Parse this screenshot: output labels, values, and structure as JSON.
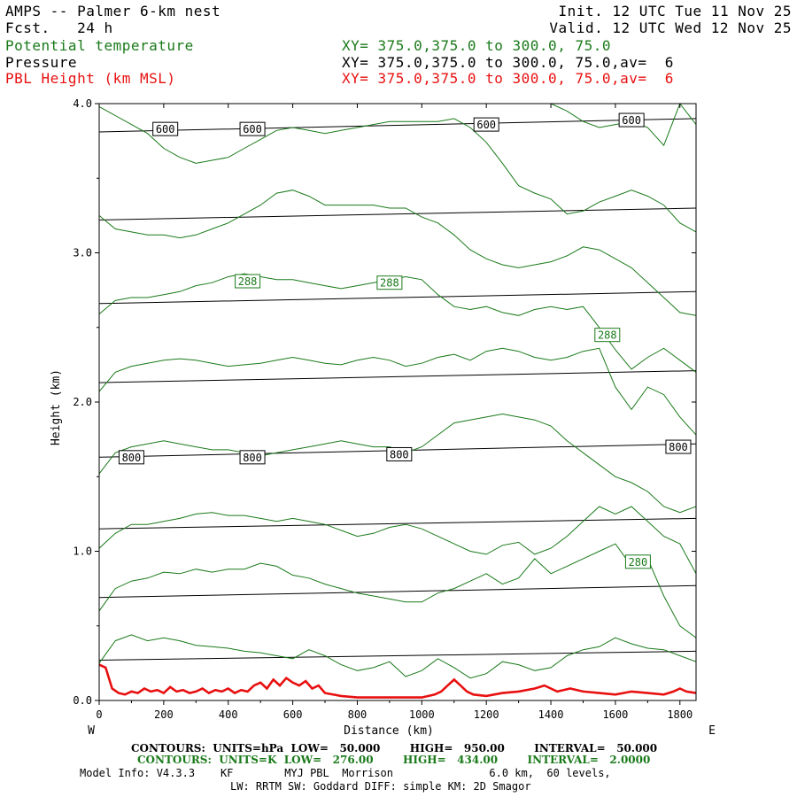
{
  "header": {
    "title": "AMPS -- Palmer 6-km nest",
    "fcst": "Fcst.   24 h",
    "init": "Init. 12 UTC Tue 11 Nov 25",
    "valid": "Valid. 12 UTC Wed 12 Nov 25",
    "var1": "Potential temperature",
    "var2": "Pressure",
    "var3": "PBL Height (km MSL)",
    "xy1": "XY= 375.0,375.0 to 300.0, 75.0",
    "xy2": "XY= 375.0,375.0 to 300.0, 75.0,av=  6",
    "xy3": "XY= 375.0,375.0 to 300.0, 75.0,av=  6"
  },
  "colors": {
    "theta": "#1a7a1a",
    "pressure": "#000000",
    "pbl": "#e81010"
  },
  "footer": {
    "contours_p": "CONTOURS:  UNITS=hPa  LOW=   50.000        HIGH=   950.00        INTERVAL=   50.000",
    "contours_t": "CONTOURS:  UNITS=K  LOW=   276.00        HIGH=   434.00        INTERVAL=   2.0000",
    "model1": "Model Info: V4.3.3    KF        MYJ PBL  Morrison               6.0 km,  60 levels,",
    "model2": "LW: RRTM SW: Goddard DIFF: simple KM: 2D Smagor"
  },
  "chart_data": {
    "type": "line",
    "xlabel": "Distance (km)",
    "ylabel": "Height (km)",
    "xlim": [
      0,
      1850
    ],
    "ylim": [
      0,
      4.0
    ],
    "x_ticks": [
      0,
      200,
      400,
      600,
      800,
      1000,
      1200,
      1400,
      1600,
      1800
    ],
    "y_ticks": [
      0.0,
      1.0,
      2.0,
      3.0,
      4.0
    ],
    "y_tick_labels": [
      "0.0",
      "1.0",
      "2.0",
      "3.0",
      "4.0"
    ],
    "x_left_label": "W",
    "x_right_label": "E",
    "pressure_series": [
      {
        "name": "pressure",
        "x": [
          0,
          1850
        ],
        "y": [
          0.27,
          0.33
        ]
      },
      {
        "name": "pressure",
        "x": [
          0,
          1850
        ],
        "y": [
          0.69,
          0.77
        ]
      },
      {
        "name": "pressure",
        "x": [
          0,
          1850
        ],
        "y": [
          1.15,
          1.22
        ]
      },
      {
        "name": "pressure",
        "x": [
          0,
          1850
        ],
        "y": [
          1.63,
          1.72
        ]
      },
      {
        "name": "pressure",
        "x": [
          0,
          1850
        ],
        "y": [
          2.13,
          2.21
        ]
      },
      {
        "name": "pressure",
        "x": [
          0,
          1850
        ],
        "y": [
          2.66,
          2.74
        ]
      },
      {
        "name": "pressure",
        "x": [
          0,
          1850
        ],
        "y": [
          3.22,
          3.3
        ]
      },
      {
        "name": "pressure",
        "x": [
          0,
          1850
        ],
        "y": [
          3.81,
          3.9
        ]
      }
    ],
    "pressure_labels": [
      {
        "text": "600",
        "x": 205,
        "y": 3.83
      },
      {
        "text": "600",
        "x": 475,
        "y": 3.83
      },
      {
        "text": "600",
        "x": 1200,
        "y": 3.86
      },
      {
        "text": "600",
        "x": 1650,
        "y": 3.89
      },
      {
        "text": "800",
        "x": 100,
        "y": 1.63
      },
      {
        "text": "800",
        "x": 475,
        "y": 1.63
      },
      {
        "text": "800",
        "x": 930,
        "y": 1.65
      },
      {
        "text": "800",
        "x": 1795,
        "y": 1.7
      }
    ],
    "theta_labels": [
      {
        "text": "288",
        "x": 460,
        "y": 2.81
      },
      {
        "text": "288",
        "x": 900,
        "y": 2.8
      },
      {
        "text": "288",
        "x": 1575,
        "y": 2.45
      },
      {
        "text": "280",
        "x": 1670,
        "y": 0.93
      }
    ],
    "theta_series": [
      {
        "name": "theta",
        "x": [
          0,
          50,
          100,
          150,
          200,
          250,
          300,
          350,
          400,
          450,
          500,
          550,
          600,
          650,
          700,
          750,
          800,
          850,
          900,
          950,
          1000,
          1050,
          1100,
          1150,
          1200,
          1250,
          1300,
          1350,
          1400,
          1450,
          1500,
          1550,
          1600,
          1650,
          1700,
          1750,
          1800,
          1850
        ],
        "y": [
          0.25,
          0.4,
          0.44,
          0.4,
          0.42,
          0.4,
          0.37,
          0.36,
          0.35,
          0.33,
          0.32,
          0.3,
          0.28,
          0.34,
          0.3,
          0.24,
          0.2,
          0.22,
          0.26,
          0.16,
          0.2,
          0.28,
          0.22,
          0.15,
          0.18,
          0.26,
          0.24,
          0.2,
          0.22,
          0.3,
          0.34,
          0.36,
          0.42,
          0.38,
          0.35,
          0.34,
          0.3,
          0.26
        ]
      },
      {
        "name": "theta",
        "x": [
          0,
          50,
          100,
          150,
          200,
          250,
          300,
          350,
          400,
          450,
          500,
          550,
          600,
          650,
          700,
          750,
          800,
          850,
          900,
          950,
          1000,
          1050,
          1100,
          1150,
          1200,
          1250,
          1300,
          1350,
          1400,
          1450,
          1500,
          1550,
          1600,
          1650,
          1700,
          1750,
          1800,
          1850
        ],
        "y": [
          0.6,
          0.75,
          0.8,
          0.82,
          0.86,
          0.85,
          0.88,
          0.86,
          0.88,
          0.88,
          0.92,
          0.9,
          0.84,
          0.82,
          0.78,
          0.75,
          0.72,
          0.7,
          0.68,
          0.66,
          0.66,
          0.72,
          0.75,
          0.8,
          0.85,
          0.78,
          0.82,
          0.95,
          0.85,
          0.9,
          0.95,
          1.0,
          1.05,
          0.9,
          0.95,
          0.7,
          0.5,
          0.42
        ]
      },
      {
        "name": "theta",
        "x": [
          0,
          50,
          100,
          150,
          200,
          250,
          300,
          350,
          400,
          450,
          500,
          550,
          600,
          650,
          700,
          750,
          800,
          850,
          900,
          950,
          1000,
          1050,
          1100,
          1150,
          1200,
          1250,
          1300,
          1350,
          1400,
          1450,
          1500,
          1550,
          1600,
          1650,
          1700,
          1750,
          1800,
          1850
        ],
        "y": [
          1.02,
          1.12,
          1.18,
          1.18,
          1.2,
          1.22,
          1.25,
          1.26,
          1.24,
          1.24,
          1.22,
          1.2,
          1.22,
          1.2,
          1.18,
          1.14,
          1.1,
          1.12,
          1.16,
          1.18,
          1.15,
          1.1,
          1.05,
          1.0,
          0.98,
          1.04,
          1.06,
          0.98,
          1.02,
          1.1,
          1.2,
          1.3,
          1.25,
          1.3,
          1.2,
          1.1,
          1.05,
          0.85
        ]
      },
      {
        "name": "theta",
        "x": [
          0,
          50,
          100,
          150,
          200,
          250,
          300,
          350,
          400,
          450,
          500,
          550,
          600,
          650,
          700,
          750,
          800,
          850,
          900,
          950,
          1000,
          1050,
          1100,
          1150,
          1200,
          1250,
          1300,
          1350,
          1400,
          1450,
          1500,
          1550,
          1600,
          1650,
          1700,
          1750,
          1800,
          1850
        ],
        "y": [
          1.52,
          1.66,
          1.7,
          1.72,
          1.74,
          1.72,
          1.7,
          1.68,
          1.68,
          1.66,
          1.64,
          1.66,
          1.68,
          1.7,
          1.72,
          1.74,
          1.72,
          1.7,
          1.7,
          1.66,
          1.7,
          1.78,
          1.86,
          1.88,
          1.9,
          1.92,
          1.9,
          1.88,
          1.84,
          1.74,
          1.66,
          1.58,
          1.5,
          1.46,
          1.4,
          1.3,
          1.26,
          1.3
        ]
      },
      {
        "name": "theta",
        "x": [
          0,
          50,
          100,
          150,
          200,
          250,
          300,
          350,
          400,
          450,
          500,
          550,
          600,
          650,
          700,
          750,
          800,
          850,
          900,
          950,
          1000,
          1050,
          1100,
          1150,
          1200,
          1250,
          1300,
          1350,
          1400,
          1450,
          1500,
          1550,
          1600,
          1650,
          1700,
          1750,
          1800,
          1850
        ],
        "y": [
          2.07,
          2.2,
          2.24,
          2.26,
          2.28,
          2.29,
          2.28,
          2.26,
          2.24,
          2.25,
          2.26,
          2.28,
          2.3,
          2.28,
          2.26,
          2.25,
          2.28,
          2.3,
          2.28,
          2.24,
          2.26,
          2.3,
          2.32,
          2.28,
          2.34,
          2.36,
          2.34,
          2.3,
          2.28,
          2.3,
          2.34,
          2.36,
          2.1,
          1.95,
          2.1,
          2.05,
          1.9,
          1.78
        ]
      },
      {
        "name": "theta",
        "x": [
          0,
          50,
          100,
          150,
          200,
          250,
          300,
          350,
          400,
          450,
          500,
          550,
          600,
          650,
          700,
          750,
          800,
          850,
          900,
          950,
          1000,
          1050,
          1100,
          1150,
          1200,
          1250,
          1300,
          1350,
          1400,
          1450,
          1500,
          1550,
          1600,
          1650,
          1700,
          1750,
          1800,
          1850
        ],
        "y": [
          2.59,
          2.68,
          2.7,
          2.7,
          2.72,
          2.74,
          2.78,
          2.8,
          2.84,
          2.86,
          2.84,
          2.82,
          2.82,
          2.8,
          2.78,
          2.76,
          2.78,
          2.8,
          2.82,
          2.84,
          2.82,
          2.72,
          2.64,
          2.62,
          2.64,
          2.6,
          2.58,
          2.62,
          2.64,
          2.62,
          2.64,
          2.5,
          2.35,
          2.22,
          2.3,
          2.36,
          2.28,
          2.2
        ]
      },
      {
        "name": "theta",
        "x": [
          0,
          50,
          100,
          150,
          200,
          250,
          300,
          350,
          400,
          450,
          500,
          550,
          600,
          650,
          700,
          750,
          800,
          850,
          900,
          950,
          1000,
          1050,
          1100,
          1150,
          1200,
          1250,
          1300,
          1350,
          1400,
          1450,
          1500,
          1550,
          1600,
          1650,
          1700,
          1750,
          1800,
          1850
        ],
        "y": [
          3.25,
          3.16,
          3.14,
          3.12,
          3.12,
          3.1,
          3.12,
          3.16,
          3.2,
          3.26,
          3.32,
          3.4,
          3.42,
          3.38,
          3.32,
          3.32,
          3.32,
          3.32,
          3.3,
          3.3,
          3.24,
          3.2,
          3.12,
          3.02,
          2.96,
          2.92,
          2.9,
          2.92,
          2.94,
          2.98,
          3.04,
          3.02,
          2.96,
          2.9,
          2.8,
          2.7,
          2.6,
          2.58
        ]
      },
      {
        "name": "theta",
        "x": [
          0,
          50,
          100,
          150,
          200,
          250,
          300,
          350,
          400,
          450,
          500,
          550,
          600,
          650,
          700,
          750,
          800,
          850,
          900,
          950,
          1000,
          1050,
          1100,
          1150,
          1200,
          1250,
          1300,
          1350,
          1400,
          1450,
          1500,
          1550,
          1600,
          1650,
          1700,
          1750,
          1800,
          1850
        ],
        "y": [
          3.98,
          3.92,
          3.86,
          3.8,
          3.7,
          3.64,
          3.6,
          3.62,
          3.64,
          3.7,
          3.76,
          3.82,
          3.84,
          3.82,
          3.8,
          3.82,
          3.84,
          3.86,
          3.88,
          3.88,
          3.88,
          3.88,
          3.9,
          3.84,
          3.74,
          3.6,
          3.45,
          3.4,
          3.36,
          3.26,
          3.28,
          3.34,
          3.38,
          3.42,
          3.38,
          3.32,
          3.2,
          3.14
        ]
      },
      {
        "name": "theta",
        "x": [
          1400,
          1450,
          1500,
          1550,
          1600,
          1650,
          1700,
          1750,
          1800,
          1850
        ],
        "y": [
          4.0,
          3.95,
          3.88,
          3.84,
          3.86,
          3.88,
          3.84,
          3.72,
          4.0,
          3.86
        ]
      }
    ],
    "pbl_series": {
      "name": "PBL Height (km MSL)",
      "x": [
        0,
        20,
        40,
        60,
        80,
        100,
        120,
        140,
        160,
        180,
        200,
        220,
        240,
        260,
        280,
        300,
        320,
        340,
        360,
        380,
        400,
        420,
        440,
        460,
        480,
        500,
        520,
        540,
        560,
        580,
        600,
        620,
        640,
        660,
        680,
        700,
        750,
        800,
        850,
        900,
        950,
        1000,
        1040,
        1060,
        1080,
        1100,
        1120,
        1140,
        1160,
        1200,
        1250,
        1300,
        1350,
        1380,
        1420,
        1460,
        1500,
        1550,
        1600,
        1650,
        1700,
        1750,
        1780,
        1800,
        1820,
        1850
      ],
      "y": [
        0.24,
        0.22,
        0.08,
        0.05,
        0.04,
        0.06,
        0.05,
        0.08,
        0.06,
        0.07,
        0.05,
        0.09,
        0.06,
        0.07,
        0.05,
        0.06,
        0.08,
        0.05,
        0.07,
        0.06,
        0.08,
        0.05,
        0.07,
        0.06,
        0.1,
        0.12,
        0.08,
        0.14,
        0.1,
        0.15,
        0.12,
        0.1,
        0.13,
        0.08,
        0.1,
        0.05,
        0.03,
        0.02,
        0.02,
        0.02,
        0.02,
        0.02,
        0.04,
        0.06,
        0.1,
        0.14,
        0.1,
        0.06,
        0.04,
        0.03,
        0.05,
        0.06,
        0.08,
        0.1,
        0.06,
        0.08,
        0.06,
        0.05,
        0.04,
        0.06,
        0.05,
        0.04,
        0.06,
        0.08,
        0.06,
        0.05
      ]
    }
  }
}
